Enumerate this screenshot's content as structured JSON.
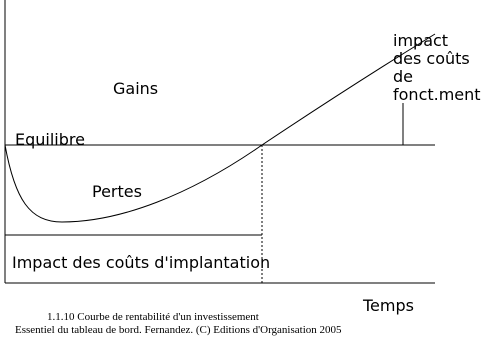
{
  "labels": {
    "gains": "Gains",
    "equilibre": "Equilibre",
    "pertes": "Pertes",
    "impact_fonctionnement": [
      "impact",
      "des coûts",
      "de",
      "fonct.ment"
    ],
    "impact_implantation": "Impact des coûts d'implantation",
    "temps": "Temps"
  },
  "caption": [
    "1.1.10 Courbe de rentabilité d'un investissement",
    "Essentiel du tableau de bord. Fernandez. (C) Editions d'Organisation 2005"
  ]
}
